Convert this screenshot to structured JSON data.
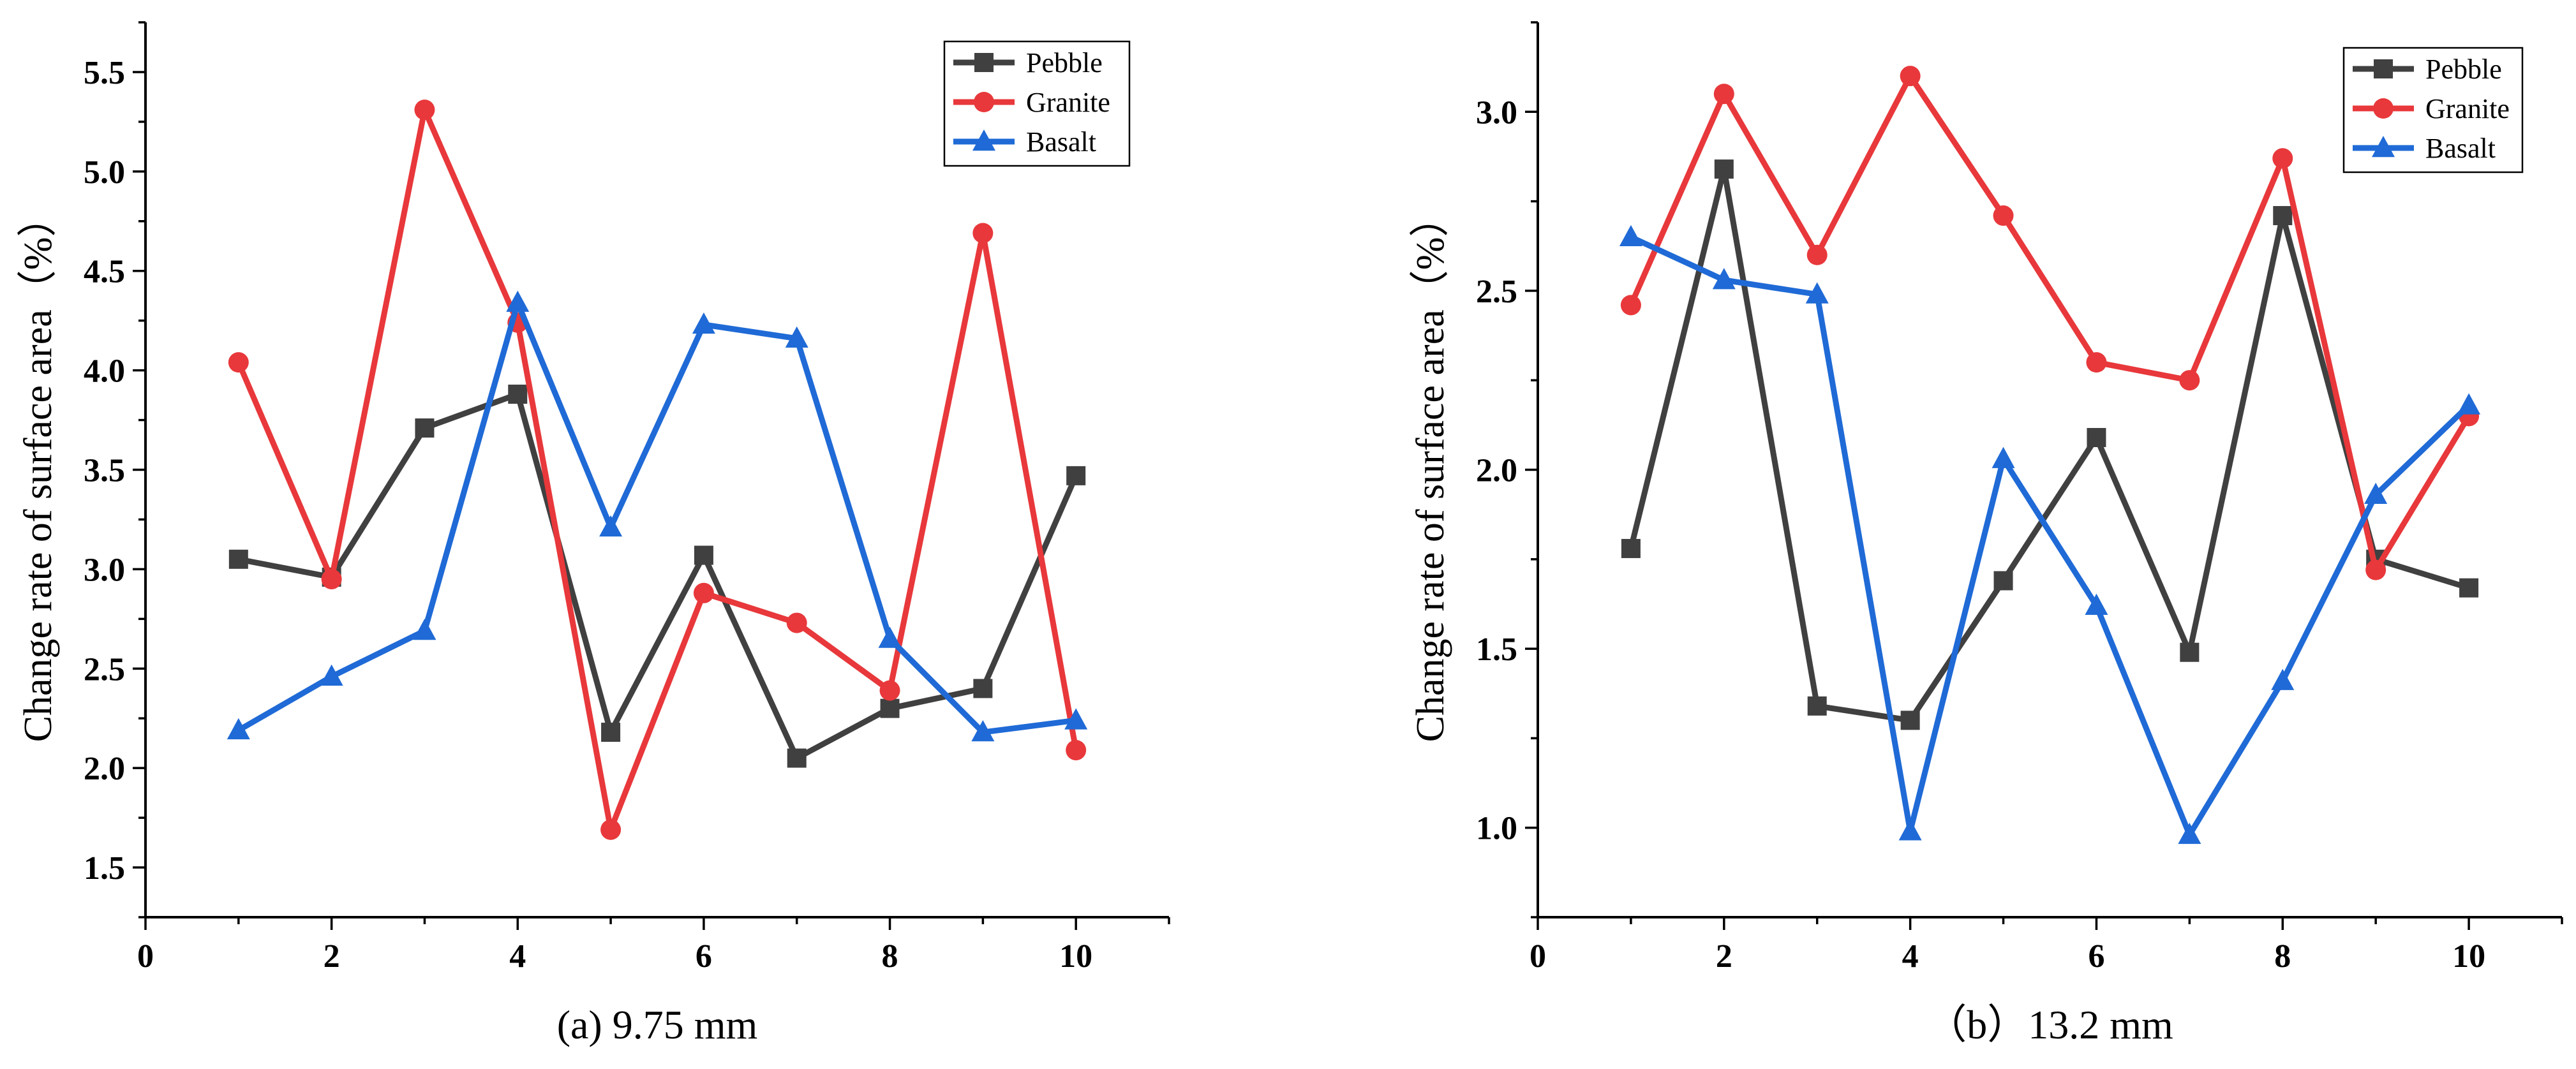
{
  "chart_data": [
    {
      "type": "line",
      "title": "",
      "caption": "(a) 9.75 mm",
      "xlabel": "",
      "ylabel": "Change rate of surface area（%）",
      "xlim": [
        0,
        11
      ],
      "ylim": [
        1.25,
        5.75
      ],
      "xticks": [
        0,
        2,
        4,
        6,
        8,
        10
      ],
      "xtick_labels": [
        "0",
        "2",
        "4",
        "6",
        "8",
        "10"
      ],
      "yticks": [
        1.5,
        2.0,
        2.5,
        3.0,
        3.5,
        4.0,
        4.5,
        5.0,
        5.5
      ],
      "ytick_labels": [
        "1.5",
        "2.0",
        "2.5",
        "3.0",
        "3.5",
        "4.0",
        "4.5",
        "5.0",
        "5.5"
      ],
      "legend_position": "top-right",
      "x": [
        1,
        2,
        3,
        4,
        5,
        6,
        7,
        8,
        9,
        10
      ],
      "series": [
        {
          "name": "Pebble",
          "color": "#404040",
          "marker": "square",
          "values": [
            3.05,
            2.96,
            3.71,
            3.88,
            2.18,
            3.07,
            2.05,
            2.3,
            2.4,
            3.47
          ]
        },
        {
          "name": "Granite",
          "color": "#e8383b",
          "marker": "circle",
          "values": [
            4.04,
            2.95,
            5.31,
            4.24,
            1.69,
            2.88,
            2.73,
            2.39,
            4.69,
            2.09
          ]
        },
        {
          "name": "Basalt",
          "color": "#1f6ad6",
          "marker": "triangle",
          "values": [
            2.19,
            2.46,
            2.69,
            4.34,
            3.21,
            4.23,
            4.16,
            2.65,
            2.18,
            2.24
          ]
        }
      ]
    },
    {
      "type": "line",
      "title": "",
      "caption": "（b）13.2 mm",
      "xlabel": "",
      "ylabel": "Change rate of surface area（%）",
      "xlim": [
        0,
        11
      ],
      "ylim": [
        0.75,
        3.25
      ],
      "xticks": [
        0,
        2,
        4,
        6,
        8,
        10
      ],
      "xtick_labels": [
        "0",
        "2",
        "4",
        "6",
        "8",
        "10"
      ],
      "yticks": [
        1.0,
        1.5,
        2.0,
        2.5,
        3.0
      ],
      "ytick_labels": [
        "1.0",
        "1.5",
        "2.0",
        "2.5",
        "3.0"
      ],
      "legend_position": "top-right",
      "x": [
        1,
        2,
        3,
        4,
        5,
        6,
        7,
        8,
        9,
        10
      ],
      "series": [
        {
          "name": "Pebble",
          "color": "#404040",
          "marker": "square",
          "values": [
            1.78,
            2.84,
            1.34,
            1.3,
            1.69,
            2.09,
            1.49,
            2.71,
            1.75,
            1.67
          ]
        },
        {
          "name": "Granite",
          "color": "#e8383b",
          "marker": "circle",
          "values": [
            2.46,
            3.05,
            2.6,
            3.1,
            2.71,
            2.3,
            2.25,
            2.87,
            1.72,
            2.15
          ]
        },
        {
          "name": "Basalt",
          "color": "#1f6ad6",
          "marker": "triangle",
          "values": [
            2.65,
            2.53,
            2.49,
            0.99,
            2.03,
            1.62,
            0.98,
            1.41,
            1.93,
            2.18
          ]
        }
      ]
    }
  ]
}
